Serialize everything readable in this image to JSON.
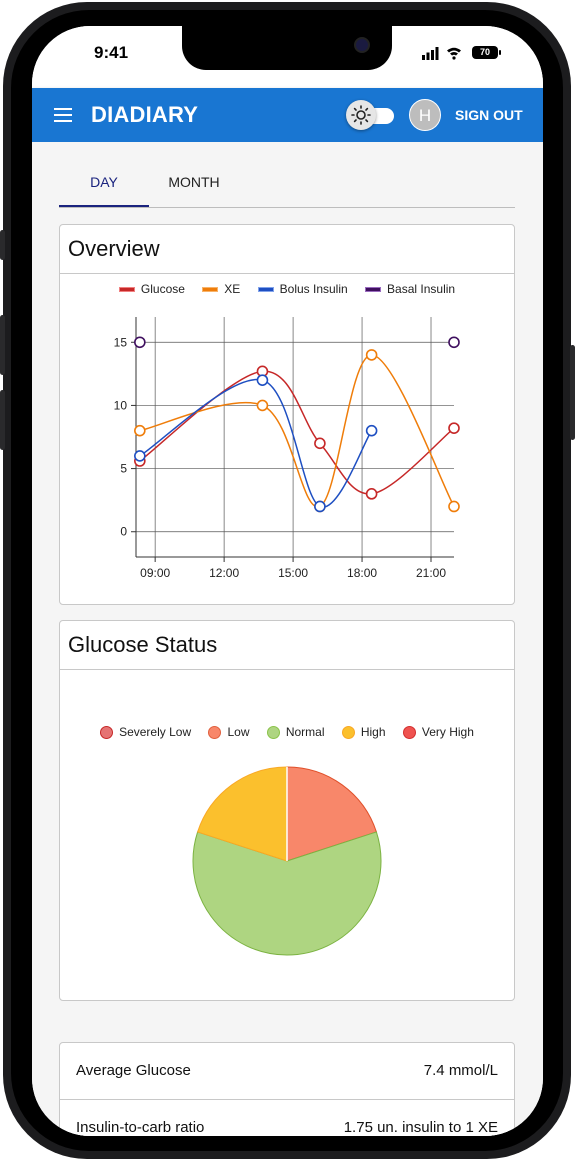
{
  "status_bar": {
    "time": "9:41",
    "battery": "70"
  },
  "app": {
    "title": "DIADIARY",
    "avatar_initial": "H",
    "sign_out_label": "SIGN OUT"
  },
  "tabs": [
    {
      "label": "DAY",
      "selected": true
    },
    {
      "label": "MONTH",
      "selected": false
    }
  ],
  "overview": {
    "title": "Overview"
  },
  "glucose_status": {
    "title": "Glucose Status"
  },
  "stats": [
    {
      "label": "Average Glucose",
      "value": "7.4 mmol/L"
    },
    {
      "label": "Insulin-to-carb ratio",
      "value": "1.75 un. insulin to 1 XE"
    }
  ],
  "colors": {
    "appbar": "#1976d2",
    "tab_active": "#1a237e"
  },
  "chart_data": [
    {
      "type": "line",
      "title": "",
      "xlabel": "",
      "ylabel": "",
      "x_ticks": [
        "09:00",
        "12:00",
        "15:00",
        "18:00",
        "21:00"
      ],
      "y_ticks": [
        0,
        5,
        10,
        15
      ],
      "xlim": [
        "08:10",
        "22:00"
      ],
      "ylim": [
        -2,
        17
      ],
      "grid": true,
      "legend_position": "top",
      "series": [
        {
          "name": "Glucose",
          "color": "#c62828",
          "points": [
            [
              "08:20",
              5.6
            ],
            [
              "13:40",
              12.7
            ],
            [
              "16:10",
              7.0
            ],
            [
              "18:25",
              3.0
            ],
            [
              "22:00",
              8.2
            ]
          ]
        },
        {
          "name": "XE",
          "color": "#ef7d0a",
          "points": [
            [
              "08:20",
              8.0
            ],
            [
              "13:40",
              10.0
            ],
            [
              "16:10",
              2.0
            ],
            [
              "18:25",
              14.0
            ],
            [
              "22:00",
              2.0
            ]
          ]
        },
        {
          "name": "Bolus Insulin",
          "color": "#1e4fc2",
          "points": [
            [
              "08:20",
              6.0
            ],
            [
              "13:40",
              12.0
            ],
            [
              "16:10",
              2.0
            ],
            [
              "18:25",
              8.0
            ]
          ]
        },
        {
          "name": "Basal Insulin",
          "color": "#3f0f5f",
          "points": [
            [
              "08:20",
              15.0
            ],
            [
              "22:00",
              15.0
            ]
          ]
        }
      ]
    },
    {
      "type": "pie",
      "title": "",
      "legend_position": "top",
      "categories": [
        "Severely Low",
        "Low",
        "Normal",
        "High",
        "Very High"
      ],
      "values": [
        0,
        20,
        60,
        20,
        0
      ],
      "colors": [
        "#e57373",
        "#f8876a",
        "#aed581",
        "#fbc02d",
        "#ef5350"
      ]
    }
  ]
}
